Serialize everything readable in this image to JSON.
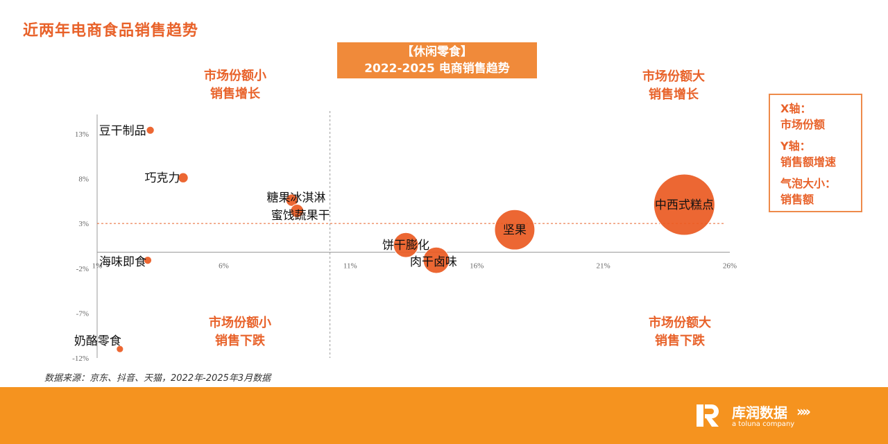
{
  "page_title": "近两年电商食品销售趋势",
  "title_box": {
    "line1": "【休闲零食】",
    "line2": "2022-2025 电商销售趋势"
  },
  "quadrants": {
    "top_left": {
      "line1": "市场份额小",
      "line2": "销售增长"
    },
    "top_right": {
      "line1": "市场份额大",
      "line2": "销售增长"
    },
    "bottom_left": {
      "line1": "市场份额小",
      "line2": "销售下跌"
    },
    "bottom_right": {
      "line1": "市场份额大",
      "line2": "销售下跌"
    }
  },
  "legend": {
    "x_title": "X轴：",
    "x_value": "市场份额",
    "y_title": "Y轴：",
    "y_value": "销售额增速",
    "size_title": "气泡大小：",
    "size_value": "销售额"
  },
  "source": "数据来源：京东、抖音、天猫，2022年-2025年3月数据",
  "brand": {
    "name": "库润数据",
    "sub": "a toluna company",
    "arrows": "››››"
  },
  "colors": {
    "accent": "#e8622a",
    "bubble": "#ea5a22",
    "band": "#f5931f"
  },
  "chart_data": {
    "type": "scatter",
    "title": "",
    "xlabel": "",
    "ylabel": "",
    "xlim": [
      1,
      26
    ],
    "ylim": [
      -12,
      14
    ],
    "x_ticks": [
      "1%",
      "6%",
      "11%",
      "16%",
      "21%",
      "26%"
    ],
    "x_tick_values": [
      1,
      6,
      11,
      16,
      21,
      26
    ],
    "y_ticks": [
      "13%",
      "8%",
      "3%",
      "-2%",
      "-7%",
      "-12%"
    ],
    "y_tick_values": [
      13,
      8,
      3,
      -2,
      -7,
      -12
    ],
    "reference_lines": {
      "x": 10.2,
      "y": 3
    },
    "points": [
      {
        "label": "豆干制品",
        "x": 3.1,
        "y": 13.4,
        "size": 0.05
      },
      {
        "label": "巧克力",
        "x": 4.4,
        "y": 8.1,
        "size": 0.08
      },
      {
        "label": "糖果冰淇淋",
        "x": 8.7,
        "y": 5.6,
        "size": 0.12
      },
      {
        "label": "蜜饯蔬果干",
        "x": 8.9,
        "y": 4.4,
        "size": 0.14
      },
      {
        "label": "海味即食",
        "x": 3.0,
        "y": -1.1,
        "size": 0.05
      },
      {
        "label": "奶酪零食",
        "x": 1.9,
        "y": -11.0,
        "size": 0.04
      },
      {
        "label": "饼干膨化",
        "x": 13.2,
        "y": 0.6,
        "size": 0.5
      },
      {
        "label": "肉干卤味",
        "x": 14.4,
        "y": -1.1,
        "size": 0.55
      },
      {
        "label": "坚果",
        "x": 17.5,
        "y": 2.3,
        "size": 1.3
      },
      {
        "label": "中西式糕点",
        "x": 24.2,
        "y": 5.1,
        "size": 3.0
      }
    ]
  }
}
